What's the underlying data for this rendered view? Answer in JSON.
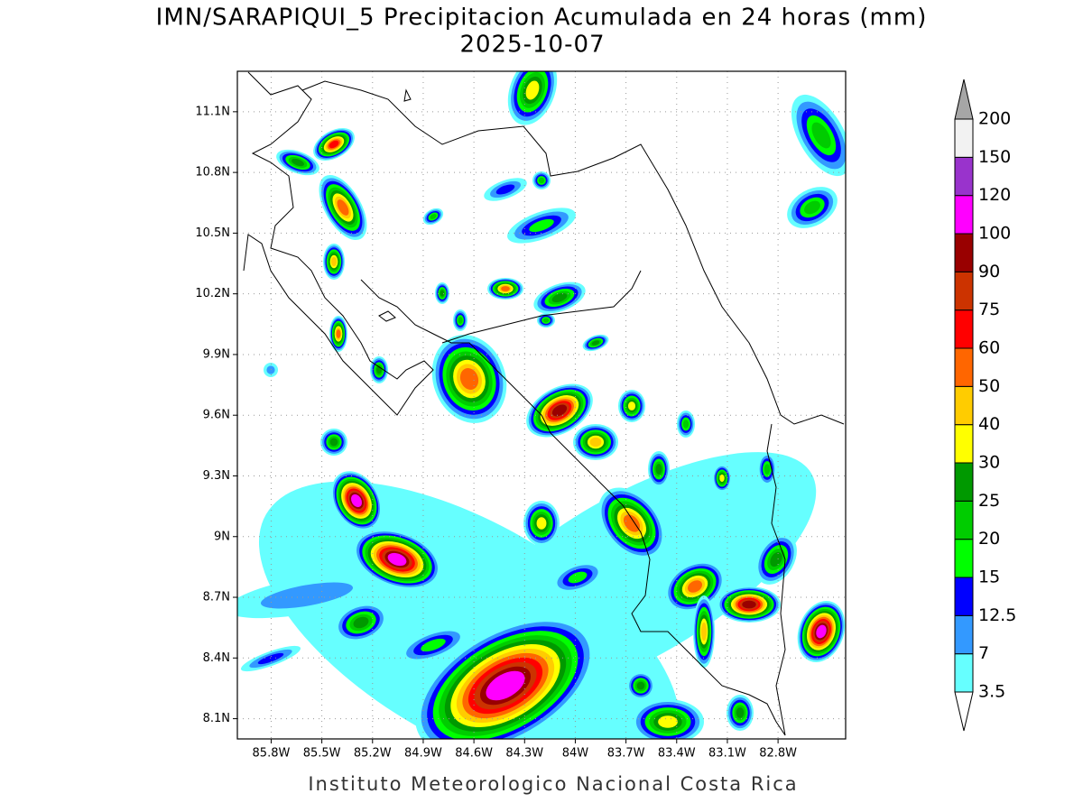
{
  "title": "IMN/SARAPIQUI_5 Precipitacion Acumulada en 24 horas (mm)",
  "subtitle": "2025-10-07",
  "credit": "Instituto Meteorologico Nacional Costa Rica",
  "map": {
    "xlim": [
      -86.0,
      -82.4
    ],
    "ylim": [
      8.0,
      11.3
    ],
    "xticks": [
      {
        "value": -85.8,
        "label": "85.8W"
      },
      {
        "value": -85.5,
        "label": "85.5W"
      },
      {
        "value": -85.2,
        "label": "85.2W"
      },
      {
        "value": -84.9,
        "label": "84.9W"
      },
      {
        "value": -84.6,
        "label": "84.6W"
      },
      {
        "value": -84.3,
        "label": "84.3W"
      },
      {
        "value": -84.0,
        "label": "84W"
      },
      {
        "value": -83.7,
        "label": "83.7W"
      },
      {
        "value": -83.4,
        "label": "83.4W"
      },
      {
        "value": -83.1,
        "label": "83.1W"
      },
      {
        "value": -82.8,
        "label": "82.8W"
      }
    ],
    "yticks": [
      {
        "value": 8.1,
        "label": "8.1N"
      },
      {
        "value": 8.4,
        "label": "8.4N"
      },
      {
        "value": 8.7,
        "label": "8.7N"
      },
      {
        "value": 9.0,
        "label": "9N"
      },
      {
        "value": 9.3,
        "label": "9.3N"
      },
      {
        "value": 9.6,
        "label": "9.6N"
      },
      {
        "value": 9.9,
        "label": "9.9N"
      },
      {
        "value": 10.2,
        "label": "10.2N"
      },
      {
        "value": 10.5,
        "label": "10.5N"
      },
      {
        "value": 10.8,
        "label": "10.8N"
      },
      {
        "value": 11.1,
        "label": "11.1N"
      }
    ],
    "grid": true
  },
  "colorbar": {
    "levels": [
      3.5,
      7,
      12.5,
      15,
      20,
      25,
      30,
      40,
      50,
      60,
      75,
      90,
      100,
      120,
      150,
      200
    ],
    "colors": [
      "#ffffff",
      "#66ffff",
      "#3399ff",
      "#0000ff",
      "#00ff00",
      "#00cc00",
      "#009900",
      "#ffff00",
      "#ffcc00",
      "#ff6600",
      "#ff0000",
      "#cc3300",
      "#990000",
      "#ff00ff",
      "#9933cc",
      "#f2f2f2",
      "#a6a6a6"
    ]
  }
}
